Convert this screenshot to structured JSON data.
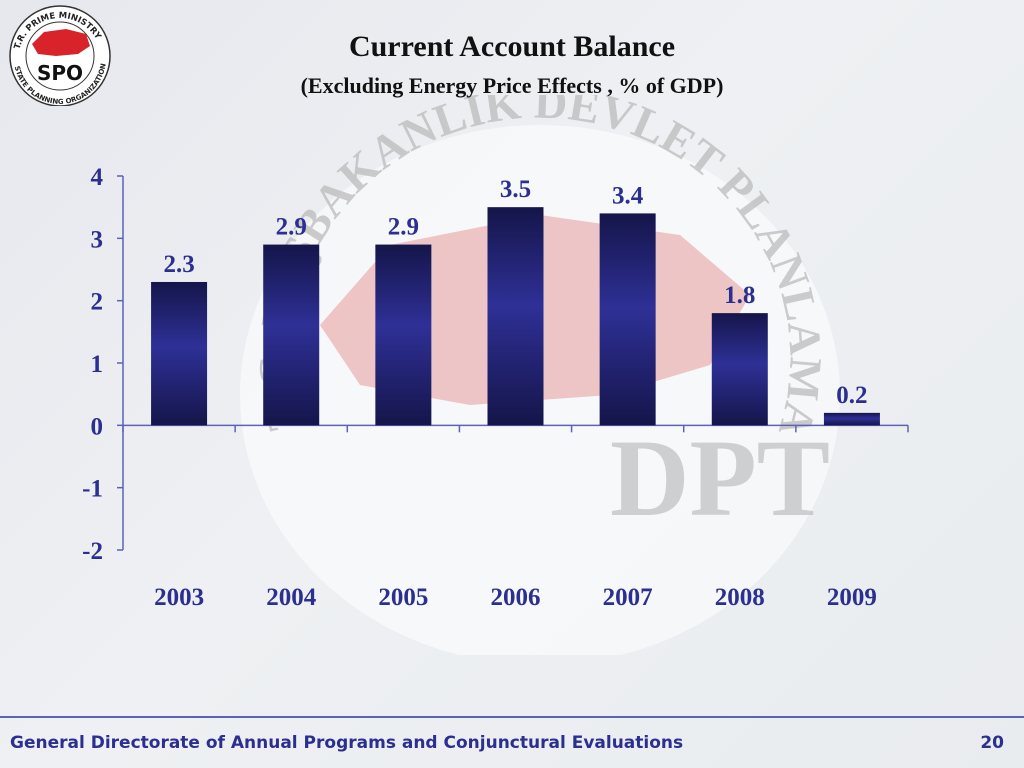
{
  "logo": {
    "abbr": "SPO",
    "ring_top": "T.R. PRIME MINISTRY",
    "ring_bottom": "STATE PLANNING ORGANIZATION",
    "flag_color": "#d8232a"
  },
  "watermark": {
    "ring_text": "T.C. BAŞBAKANLIK DEVLET PLANLAMA TEŞKİLATI",
    "center_text": "DPT"
  },
  "chart_data": {
    "type": "bar",
    "title": "Current Account Balance",
    "subtitle": "(Excluding  Energy  Price Effects , % of  GDP)",
    "categories": [
      "2003",
      "2004",
      "2005",
      "2006",
      "2007",
      "2008",
      "2009"
    ],
    "values": [
      2.3,
      2.9,
      2.9,
      3.5,
      3.4,
      1.8,
      0.2
    ],
    "data_labels": [
      "2.3",
      "2.9",
      "2.9",
      "3.5",
      "3.4",
      "1.8",
      "0.2"
    ],
    "ylim": [
      -2,
      4
    ],
    "yticks": [
      "4",
      "3",
      "2",
      "1",
      "0",
      "-1",
      "-2"
    ],
    "grid": false,
    "legend": "none",
    "bar_color": "#2e3096",
    "bar_edge_color": "#15154a",
    "label_color": "#2b2f8f"
  },
  "footer": {
    "text": "General Directorate of Annual Programs and Conjunctural Evaluations",
    "page": "20"
  }
}
